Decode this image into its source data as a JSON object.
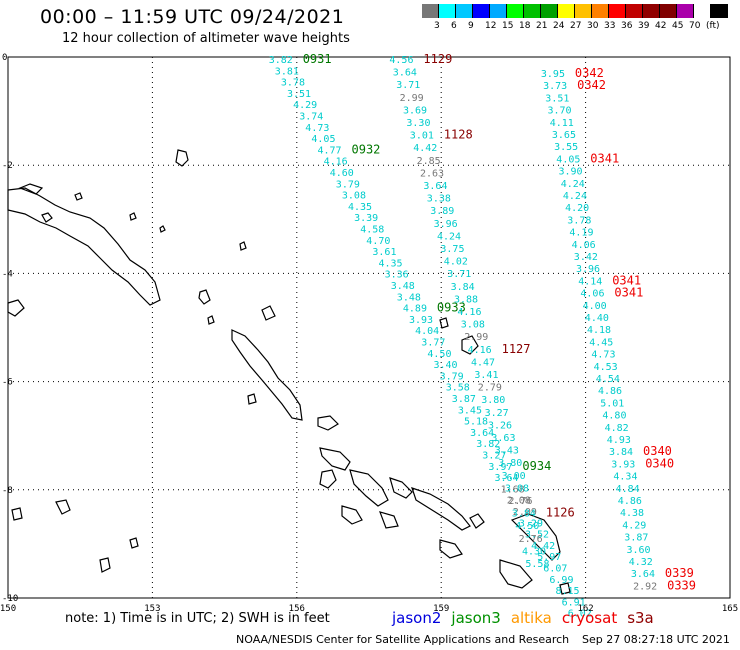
{
  "header": {
    "title": "00:00 – 11:59 UTC 09/24/2021",
    "subtitle": "12 hour collection of altimeter wave heights"
  },
  "legend": {
    "unit": "(ft)",
    "colors": [
      "#777777",
      "#00ffff",
      "#00c8ff",
      "#0000ff",
      "#00aaff",
      "#00ff00",
      "#00c000",
      "#00a000",
      "#ffff00",
      "#ffc000",
      "#ff8000",
      "#ff0000",
      "#c00000",
      "#900000",
      "#800000",
      "#aa00aa",
      "#ffffff",
      "#000000"
    ],
    "labels": [
      "3",
      "6",
      "9",
      "12",
      "15",
      "18",
      "21",
      "24",
      "27",
      "30",
      "33",
      "36",
      "39",
      "42",
      "45",
      "70"
    ]
  },
  "axes": {
    "lon_labels": [
      "150",
      "153",
      "156",
      "159",
      "162",
      "165"
    ],
    "lat_labels": [
      "0",
      "-2",
      "-4",
      "-6",
      "-8",
      "-10"
    ]
  },
  "tracks": [
    {
      "name": "track-a",
      "times": [
        "0931",
        "0932",
        "0933",
        "0934"
      ],
      "values": [
        "3.82",
        "3.81",
        "3.78",
        "3.51",
        "4.29",
        "3.74",
        "4.73",
        "4.05",
        "4.77",
        "4.16",
        "4.60",
        "3.79",
        "3.08",
        "4.35",
        "3.39",
        "4.58",
        "4.70",
        "3.61",
        "4.35",
        "3.36",
        "3.48",
        "3.48",
        "4.89",
        "3.93",
        "4.04",
        "3.77",
        "4.50",
        "3.40",
        "3.79",
        "3.58",
        "3.87",
        "3.45",
        "5.18",
        "3.64",
        "3.82",
        "3.27",
        "3.97",
        "3.64",
        "1.68",
        "2.08",
        "2.09",
        "3.29",
        "3.52",
        "4.42",
        "5.97",
        "6.07",
        "6.99",
        "8.15",
        "6.91",
        "6.02"
      ]
    },
    {
      "name": "track-b",
      "times": [
        "1129",
        "1128",
        "1127",
        "1126"
      ],
      "values": [
        "4.56",
        "3.64",
        "3.71",
        "2.99",
        "3.69",
        "3.30",
        "3.01",
        "4.42",
        "2.85",
        "2.63",
        "3.64",
        "3.38",
        "3.89",
        "3.96",
        "4.24",
        "3.75",
        "4.02",
        "3.71",
        "3.84",
        "3.88",
        "4.16",
        "3.08",
        "2.99",
        "4.16",
        "4.47",
        "3.41",
        "2.79",
        "3.80",
        "3.27",
        "3.26",
        "3.63",
        "3.43",
        "3.80",
        "3.00",
        "3.08",
        "2.76",
        "3.84",
        "4.50",
        "2.76",
        "4.30",
        "5.58"
      ]
    },
    {
      "name": "track-c",
      "times": [
        "0342",
        "0342",
        "0341",
        "0341",
        "0341",
        "0340",
        "0340",
        "0339",
        "0339"
      ],
      "values": [
        "3.95",
        "3.73",
        "3.51",
        "3.70",
        "4.11",
        "3.65",
        "3.55",
        "4.05",
        "3.90",
        "4.24",
        "4.24",
        "4.20",
        "3.78",
        "4.19",
        "4.06",
        "3.42",
        "3.96",
        "4.14",
        "4.06",
        "4.00",
        "4.40",
        "4.18",
        "4.45",
        "4.73",
        "4.53",
        "4.54",
        "4.86",
        "5.01",
        "4.80",
        "4.82",
        "4.93",
        "3.84",
        "3.93",
        "4.34",
        "4.84",
        "4.86",
        "4.38",
        "4.29",
        "3.87",
        "3.60",
        "4.32",
        "3.64",
        "2.92"
      ]
    }
  ],
  "footer": {
    "note": "note: 1) Time is in UTC; 2) SWH is in feet",
    "satellites": [
      {
        "name": "jason2",
        "color": "#0000dd"
      },
      {
        "name": "jason3",
        "color": "#009000"
      },
      {
        "name": "altika",
        "color": "#ff9900"
      },
      {
        "name": "cryosat",
        "color": "#ee0000"
      },
      {
        "name": "s3a",
        "color": "#900000"
      }
    ],
    "credit": "NOAA/NESDIS Center for Satellite Applications and Research",
    "timestamp": "Sep 27 08:27:18 UTC 2021"
  }
}
